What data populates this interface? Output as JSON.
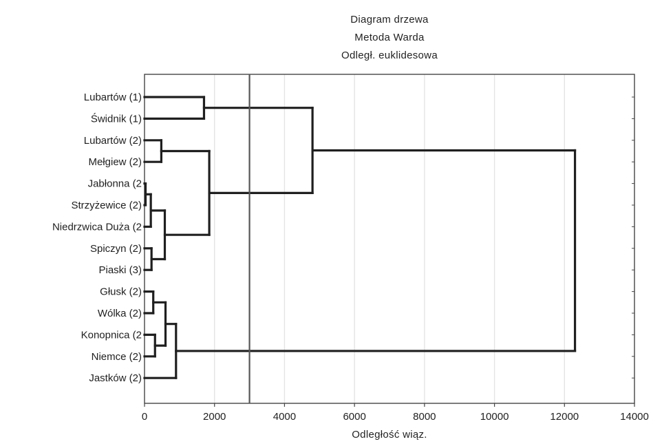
{
  "chart_data": {
    "type": "dendrogram",
    "title_lines": [
      "Diagram drzewa",
      "Metoda Warda",
      "Odległ. euklidesowa"
    ],
    "xlabel": "Odległość wiąz.",
    "ylabel": "",
    "xlim": [
      0,
      14000
    ],
    "xticks": [
      0,
      2000,
      4000,
      6000,
      8000,
      10000,
      12000,
      14000
    ],
    "cut_line": 3000,
    "grid": true,
    "colors": {
      "line": "#1f1f1f",
      "grid": "#e3e3e3",
      "cut_line": "#555555",
      "axis": "#444444"
    },
    "leaves": [
      "Lubartów (1)",
      "Świdnik (1)",
      "Lubartów (2)",
      "Mełgiew (2)",
      "Jabłonna (2",
      "Strzyżewice (2)",
      "Niedrzwica Duża (2",
      "Spiczyn (2)",
      "Piaski (3)",
      "Głusk (2)",
      "Wólka (2)",
      "Konopnica (2",
      "Niemce (2)",
      "Jastków (2)"
    ],
    "merges": [
      {
        "id": "m1",
        "a": "L0",
        "b": "L1",
        "height": 1700
      },
      {
        "id": "m2",
        "a": "L2",
        "b": "L3",
        "height": 480
      },
      {
        "id": "m3",
        "a": "L4",
        "b": "L5",
        "height": 30
      },
      {
        "id": "m4",
        "a": "m3",
        "b": "L6",
        "height": 180
      },
      {
        "id": "m5",
        "a": "L7",
        "b": "L8",
        "height": 200
      },
      {
        "id": "m6",
        "a": "m4",
        "b": "m5",
        "height": 580
      },
      {
        "id": "m7",
        "a": "m2",
        "b": "m6",
        "height": 1850
      },
      {
        "id": "m8",
        "a": "m1",
        "b": "m7",
        "height": 4800
      },
      {
        "id": "m9",
        "a": "L9",
        "b": "L10",
        "height": 250
      },
      {
        "id": "m10",
        "a": "L11",
        "b": "L12",
        "height": 300
      },
      {
        "id": "m11",
        "a": "m9",
        "b": "m10",
        "height": 600
      },
      {
        "id": "m12",
        "a": "m11",
        "b": "L13",
        "height": 900
      },
      {
        "id": "m13",
        "a": "m8",
        "b": "m12",
        "height": 12300
      }
    ]
  }
}
